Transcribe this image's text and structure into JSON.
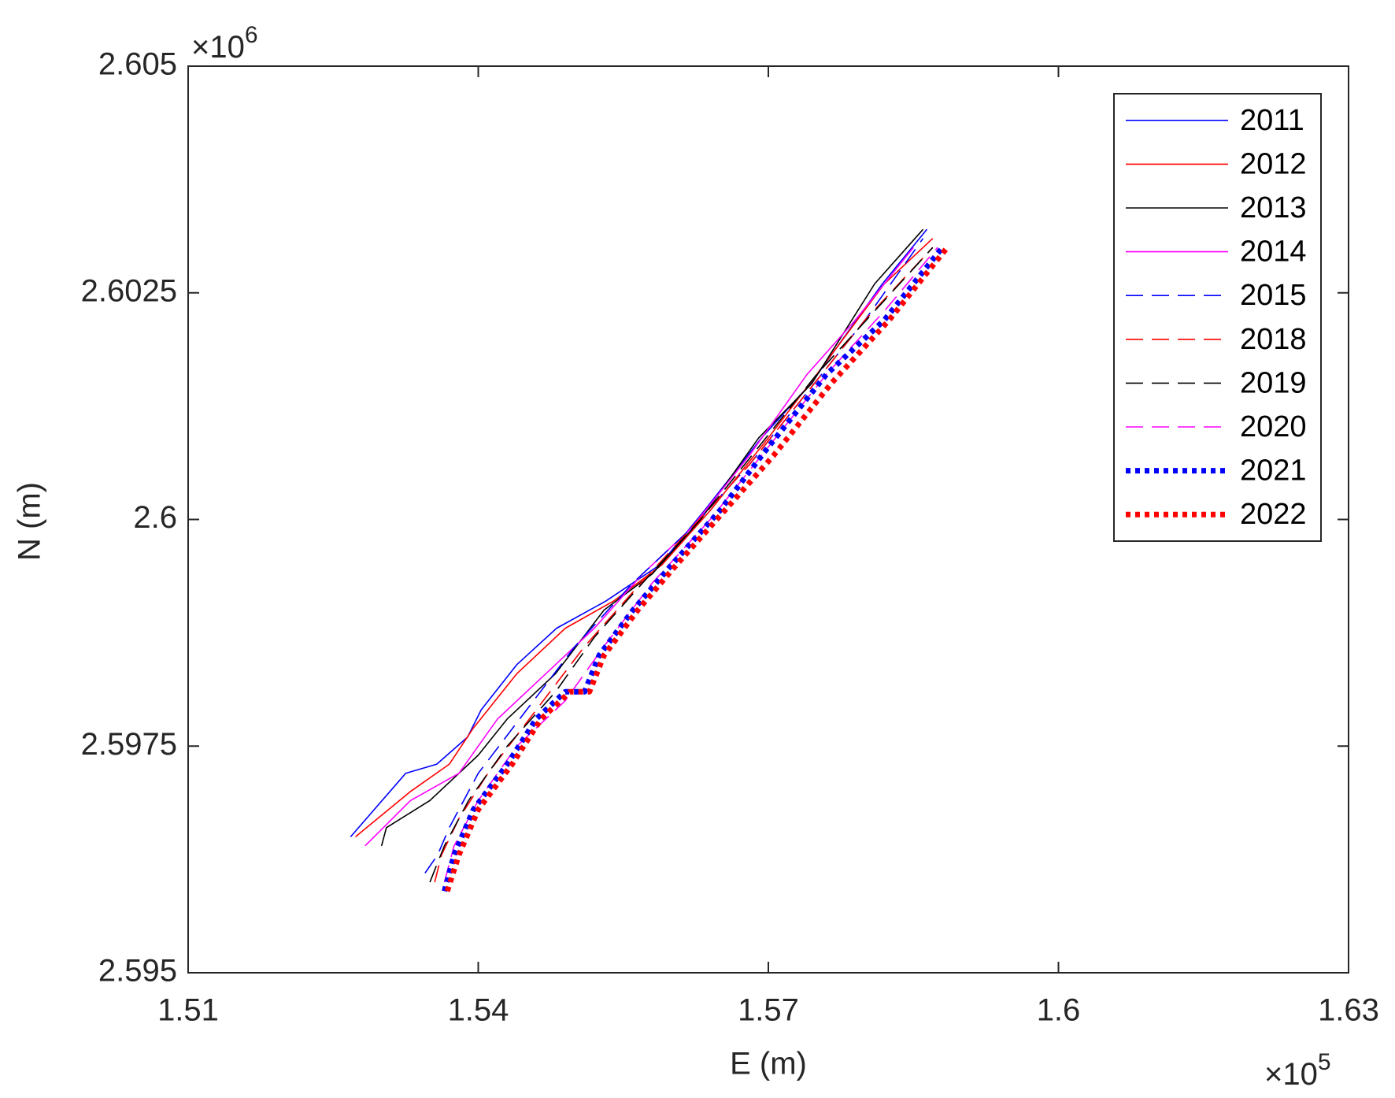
{
  "chart_data": {
    "type": "line",
    "x_label": "E (m)",
    "y_label": "N (m)",
    "x_multiplier": {
      "base": "×10",
      "power": "5"
    },
    "y_multiplier": {
      "base": "×10",
      "power": "6"
    },
    "xlim": [
      1.51,
      1.63
    ],
    "xticks": [
      1.51,
      1.54,
      1.57,
      1.6,
      1.63
    ],
    "ylim": [
      2.595,
      2.605
    ],
    "yticks": [
      2.595,
      2.5975,
      2.6,
      2.6025,
      2.605
    ],
    "grid": false,
    "legend": "northeast",
    "series": [
      {
        "name": "2011",
        "color": "#0000ff",
        "style": "solid",
        "x": [
          1.5268,
          1.5325,
          1.5357,
          1.5389,
          1.5403,
          1.544,
          1.5481,
          1.5532,
          1.5588,
          1.5634,
          1.5693,
          1.5744,
          1.5818,
          1.5864
        ],
        "values": [
          2.5965,
          2.5972,
          2.5973,
          2.5976,
          2.5979,
          2.5984,
          2.5988,
          2.5991,
          2.5995,
          2.6001,
          2.6009,
          2.6015,
          2.6026,
          2.6032
        ]
      },
      {
        "name": "2012",
        "color": "#ff0000",
        "style": "solid",
        "x": [
          1.5273,
          1.533,
          1.537,
          1.5395,
          1.544,
          1.549,
          1.554,
          1.559,
          1.564,
          1.57,
          1.575,
          1.582,
          1.587
        ],
        "values": [
          2.5965,
          2.597,
          2.5973,
          2.5977,
          2.5983,
          2.5988,
          2.5991,
          2.5995,
          2.6001,
          2.6009,
          2.6016,
          2.6026,
          2.6031
        ]
      },
      {
        "name": "2013",
        "color": "#000000",
        "style": "solid",
        "x": [
          1.53,
          1.5305,
          1.535,
          1.54,
          1.543,
          1.548,
          1.553,
          1.558,
          1.563,
          1.569,
          1.5745,
          1.581,
          1.586
        ],
        "values": [
          2.5964,
          2.5966,
          2.5969,
          2.5974,
          2.5978,
          2.5983,
          2.599,
          2.5994,
          2.6,
          2.6009,
          2.6015,
          2.6026,
          2.6032
        ]
      },
      {
        "name": "2014",
        "color": "#ff00ff",
        "style": "solid",
        "x": [
          1.5283,
          1.533,
          1.538,
          1.542,
          1.547,
          1.552,
          1.557,
          1.562,
          1.568,
          1.574,
          1.579,
          1.585
        ],
        "values": [
          2.5964,
          2.5969,
          2.5972,
          2.5978,
          2.5983,
          2.5988,
          2.5994,
          2.5999,
          2.6007,
          2.6016,
          2.6022,
          2.603
        ]
      },
      {
        "name": "2015",
        "color": "#0000ff",
        "style": "dashed",
        "x": [
          1.5345,
          1.5358,
          1.537,
          1.54,
          1.545,
          1.55,
          1.556,
          1.562,
          1.568,
          1.574,
          1.58,
          1.586
        ],
        "values": [
          2.5961,
          2.5963,
          2.5966,
          2.5972,
          2.5979,
          2.5986,
          2.5993,
          2.5999,
          2.6006,
          2.6014,
          2.6022,
          2.6031
        ]
      },
      {
        "name": "2018",
        "color": "#ff0000",
        "style": "dashed",
        "x": [
          1.5355,
          1.5362,
          1.538,
          1.541,
          1.546,
          1.551,
          1.556,
          1.562,
          1.568,
          1.574,
          1.58,
          1.587
        ],
        "values": [
          2.596,
          2.5963,
          2.5967,
          2.5972,
          2.5979,
          2.5986,
          2.5992,
          2.5999,
          2.6006,
          2.6014,
          2.6022,
          2.603
        ]
      },
      {
        "name": "2019",
        "color": "#000000",
        "style": "dashed",
        "x": [
          1.535,
          1.5365,
          1.539,
          1.543,
          1.548,
          1.552,
          1.557,
          1.563,
          1.569,
          1.575,
          1.581,
          1.587
        ],
        "values": [
          2.596,
          2.5964,
          2.5969,
          2.5975,
          2.5981,
          2.5987,
          2.5993,
          2.6,
          2.6008,
          2.6016,
          2.6023,
          2.603
        ]
      },
      {
        "name": "2020",
        "color": "#ff00ff",
        "style": "dashed",
        "x": [
          1.5365,
          1.5375,
          1.54,
          1.544,
          1.549,
          1.553,
          1.558,
          1.564,
          1.57,
          1.576,
          1.582,
          1.5875
        ],
        "values": [
          2.596,
          2.5964,
          2.5969,
          2.5975,
          2.598,
          2.5986,
          2.5993,
          2.6,
          2.6008,
          2.6016,
          2.6023,
          2.603
        ]
      },
      {
        "name": "2021",
        "color": "#0000ff",
        "style": "dotted",
        "x": [
          1.5365,
          1.5375,
          1.5395,
          1.543,
          1.546,
          1.549,
          1.551,
          1.5525,
          1.556,
          1.56,
          1.565,
          1.57,
          1.576,
          1.582,
          1.588
        ],
        "values": [
          2.5959,
          2.5963,
          2.5968,
          2.5973,
          2.5978,
          2.5981,
          2.5981,
          2.5985,
          2.599,
          2.5995,
          2.6001,
          2.6008,
          2.6016,
          2.6022,
          2.603
        ]
      },
      {
        "name": "2022",
        "color": "#ff0000",
        "style": "dotted",
        "x": [
          1.5368,
          1.538,
          1.54,
          1.5435,
          1.5465,
          1.5495,
          1.5515,
          1.553,
          1.5565,
          1.5605,
          1.5655,
          1.5705,
          1.5765,
          1.5825,
          1.5885
        ],
        "values": [
          2.5959,
          2.5963,
          2.5968,
          2.5973,
          2.5978,
          2.5981,
          2.5981,
          2.5985,
          2.599,
          2.5995,
          2.6001,
          2.6007,
          2.6015,
          2.6022,
          2.603
        ]
      }
    ]
  }
}
